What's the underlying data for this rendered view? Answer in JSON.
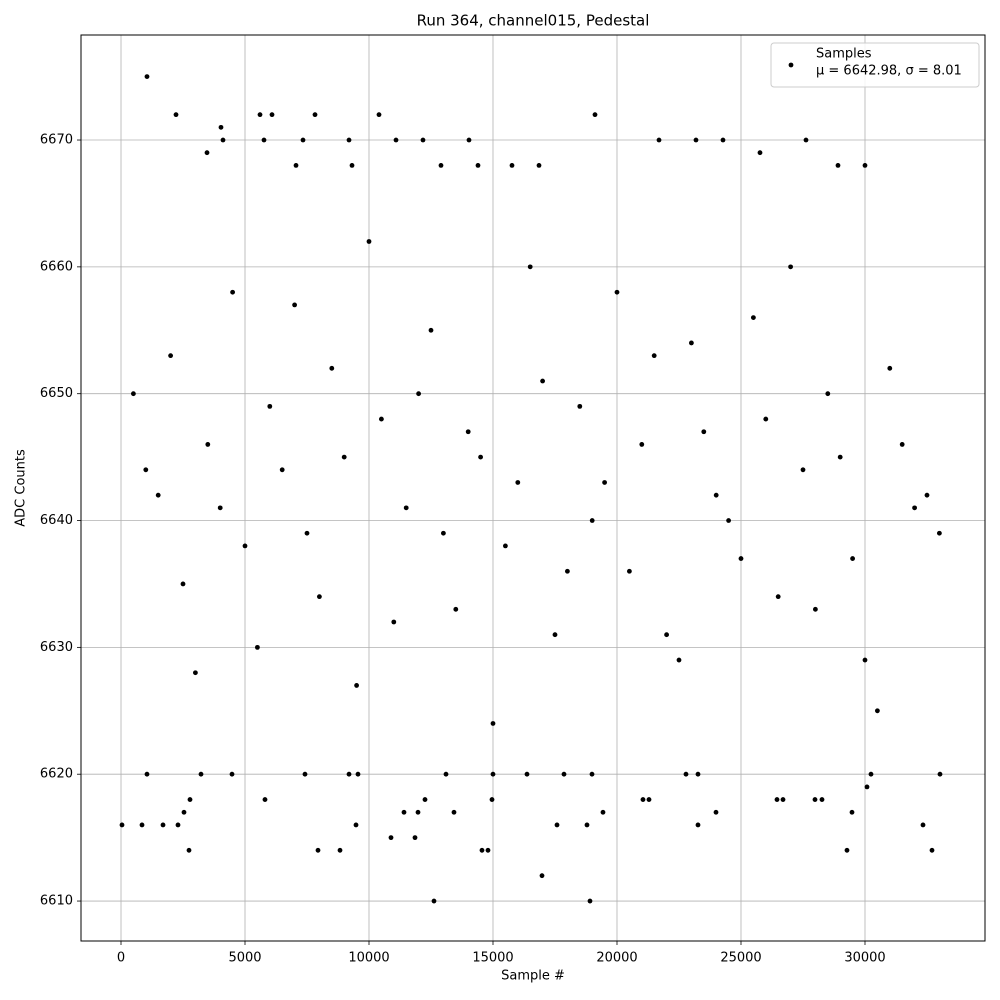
{
  "chart_data": {
    "type": "scatter",
    "title": "Run 364, channel015, Pedestal",
    "x_label": "Sample #",
    "y_label": "ADC Counts",
    "annotation": "μ = 6642.98, σ = 8.01",
    "xlim": [
      -1613,
      34839
    ],
    "ylim": [
      6606.85,
      6678.28
    ],
    "xticks": [
      0,
      5000,
      10000,
      15000,
      20000,
      25000,
      30000
    ],
    "yticks": [
      6610,
      6620,
      6630,
      6640,
      6650,
      6660,
      6670
    ],
    "grid": true,
    "legend": "upper right",
    "series": [
      {
        "name": "Samples",
        "color": "#000000",
        "x": [
          1048,
          2218,
          5605,
          6089,
          7823,
          10403,
          19113,
          4032,
          4113,
          5766,
          7339,
          9194,
          11089,
          12177,
          14032,
          21694,
          23185,
          24274,
          27621,
          3468,
          25766,
          7057,
          9315,
          12903,
          14395,
          15766,
          16855,
          28911,
          30000,
          40,
          847,
          1694,
          2298,
          9476,
          17581,
          18790,
          23266,
          32339,
          2540,
          13427,
          29476,
          19435,
          23992,
          2742,
          7944,
          8831,
          14556,
          14798,
          29274,
          32702,
          16976,
          12621,
          18911,
          10887,
          11855,
          11411,
          11976,
          12258,
          2782,
          5806,
          14960,
          21048,
          21290,
          26452,
          26694,
          27984,
          28266,
          30081,
          1048,
          3226,
          4476,
          7419,
          9194,
          9556,
          13105,
          15000,
          16371,
          17863,
          18992,
          22782,
          23266,
          30242,
          33024,
          500,
          1500,
          2500,
          3500,
          4500,
          5500,
          6500,
          7500,
          8500,
          9500,
          10500,
          11500,
          12500,
          13500,
          14500,
          15500,
          16500,
          17500,
          18500,
          19500,
          20500,
          21500,
          22500,
          23500,
          24500,
          25500,
          26500,
          27500,
          28500,
          29500,
          30500,
          31500,
          32500,
          1000,
          2000,
          3000,
          4000,
          5000,
          6000,
          7000,
          8000,
          9000,
          10000,
          11000,
          12000,
          13000,
          14000,
          15000,
          16000,
          17000,
          18000,
          19000,
          20000,
          21000,
          22000,
          23000,
          24000,
          25000,
          26000,
          27000,
          28000,
          29000,
          30000,
          31000,
          32000,
          33000
        ],
        "values": [
          6675,
          6672,
          6672,
          6672,
          6672,
          6672,
          6672,
          6671,
          6670,
          6670,
          6670,
          6670,
          6670,
          6670,
          6670,
          6670,
          6670,
          6670,
          6670,
          6669,
          6669,
          6668,
          6668,
          6668,
          6668,
          6668,
          6668,
          6668,
          6668,
          6616,
          6616,
          6616,
          6616,
          6616,
          6616,
          6616,
          6616,
          6616,
          6617,
          6617,
          6617,
          6617,
          6617,
          6614,
          6614,
          6614,
          6614,
          6614,
          6614,
          6614,
          6612,
          6610,
          6610,
          6615,
          6615,
          6617,
          6617,
          6618,
          6618,
          6618,
          6618,
          6618,
          6618,
          6618,
          6618,
          6618,
          6618,
          6619,
          6620,
          6620,
          6620,
          6620,
          6620,
          6620,
          6620,
          6620,
          6620,
          6620,
          6620,
          6620,
          6620,
          6620,
          6620,
          6650,
          6642,
          6635,
          6646,
          6658,
          6630,
          6644,
          6639,
          6652,
          6627,
          6648,
          6641,
          6655,
          6633,
          6645,
          6638,
          6660,
          6631,
          6649,
          6643,
          6636,
          6653,
          6629,
          6647,
          6640,
          6656,
          6634,
          6644,
          6650,
          6637,
          6625,
          6646,
          6642,
          6644,
          6653,
          6628,
          6641,
          6638,
          6649,
          6657,
          6634,
          6645,
          6662,
          6632,
          6650,
          6639,
          6647,
          6624,
          6643,
          6651,
          6636,
          6640,
          6658,
          6646,
          6631,
          6654,
          6642,
          6637,
          6648,
          6660,
          6633,
          6645,
          6629,
          6652,
          6641,
          6639
        ]
      }
    ]
  }
}
